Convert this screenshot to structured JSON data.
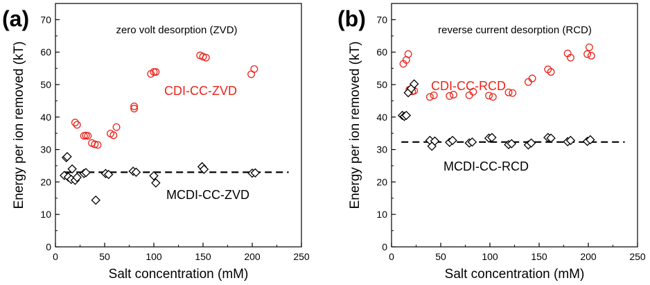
{
  "chart_data": [
    {
      "type": "scatter",
      "panel_label": "(a)",
      "title": "zero volt desorption (ZVD)",
      "xlabel": "Salt concentration (mM)",
      "ylabel": "Energy per ion removed (kT)",
      "xlim": [
        0,
        250
      ],
      "ylim": [
        0,
        75
      ],
      "xticks": [
        "0",
        "50",
        "100",
        "150",
        "200",
        "250"
      ],
      "yticks": [
        "0",
        "10",
        "20",
        "30",
        "40",
        "50",
        "60",
        "70"
      ],
      "series": [
        {
          "name": "CDI-CC-ZVD",
          "marker": "circle",
          "color": "#e8231b",
          "x": [
            20,
            22,
            29,
            31,
            33,
            37,
            40,
            43,
            56,
            59,
            62,
            80,
            80,
            97,
            100,
            102,
            147,
            150,
            153,
            199,
            202
          ],
          "y": [
            38.3,
            37.6,
            34.2,
            34.3,
            34.2,
            32.0,
            31.6,
            31.4,
            34.9,
            34.4,
            36.9,
            42.6,
            43.3,
            53.3,
            53.9,
            53.9,
            59.0,
            58.6,
            58.3,
            53.2,
            54.8
          ]
        },
        {
          "name": "MCDI-CC-ZVD",
          "marker": "diamond",
          "color": "#000000",
          "x": [
            9,
            11,
            12,
            13,
            16,
            17,
            20,
            22,
            29,
            31,
            41,
            51,
            54,
            79,
            82,
            100,
            102,
            149,
            151,
            200,
            203
          ],
          "y": [
            22.0,
            27.5,
            27.8,
            21.5,
            20.8,
            24.0,
            20.5,
            21.4,
            22.6,
            22.9,
            14.4,
            22.6,
            22.3,
            23.3,
            23.0,
            21.9,
            19.7,
            24.7,
            23.9,
            22.7,
            22.8
          ]
        }
      ],
      "reference_lines": [
        {
          "type": "dashed",
          "y": 23,
          "color": "#000000"
        }
      ]
    },
    {
      "type": "scatter",
      "panel_label": "(b)",
      "title": "reverse current desorption (RCD)",
      "xlabel": "Salt concentration (mM)",
      "ylabel": "Energy per ion removed (kT)",
      "xlim": [
        0,
        250
      ],
      "ylim": [
        0,
        75
      ],
      "xticks": [
        "0",
        "50",
        "100",
        "150",
        "200",
        "250"
      ],
      "yticks": [
        "0",
        "10",
        "20",
        "30",
        "40",
        "50",
        "60",
        "70"
      ],
      "series": [
        {
          "name": "CDI-CC-RCD",
          "marker": "circle",
          "color": "#e8231b",
          "x": [
            12,
            15,
            17,
            18,
            21,
            23,
            39,
            43,
            59,
            63,
            79,
            83,
            99,
            103,
            119,
            123,
            139,
            143,
            159,
            162,
            179,
            182,
            199,
            201,
            203
          ],
          "y": [
            56.4,
            57.6,
            59.4,
            48.4,
            47.9,
            48.1,
            46.2,
            46.7,
            46.5,
            46.9,
            46.7,
            47.8,
            46.6,
            46.2,
            47.6,
            47.4,
            50.8,
            51.9,
            54.7,
            53.9,
            59.6,
            58.3,
            59.4,
            61.5,
            58.9
          ]
        },
        {
          "name": "MCDI-CC-RCD",
          "marker": "diamond",
          "color": "#000000",
          "x": [
            11,
            13,
            15,
            17,
            20,
            23,
            39,
            41,
            44,
            59,
            62,
            79,
            82,
            99,
            102,
            119,
            122,
            139,
            142,
            159,
            162,
            179,
            182,
            199,
            202
          ],
          "y": [
            40.5,
            40.2,
            40.5,
            47.5,
            48.8,
            50.2,
            32.8,
            31.0,
            32.6,
            32.2,
            32.8,
            32.0,
            32.3,
            33.5,
            33.7,
            31.5,
            31.8,
            31.4,
            32.0,
            33.7,
            33.5,
            32.4,
            32.8,
            32.5,
            33.0
          ]
        }
      ],
      "reference_lines": [
        {
          "type": "dashed",
          "y": 32.3,
          "color": "#000000"
        }
      ]
    }
  ]
}
